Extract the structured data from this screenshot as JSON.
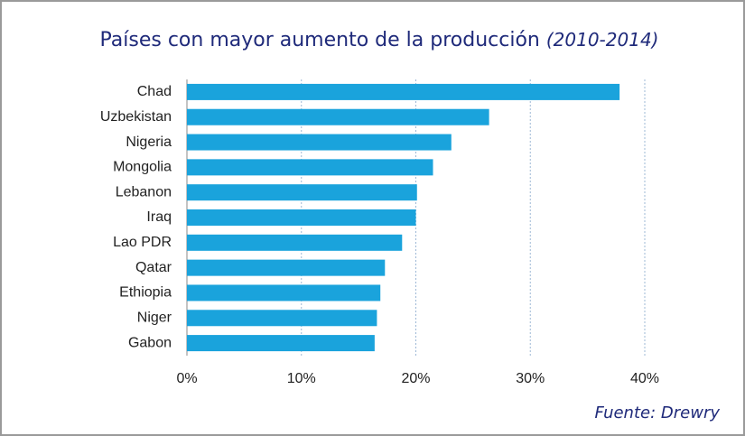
{
  "chart_data": {
    "type": "bar",
    "orientation": "horizontal",
    "title": "Países con mayor aumento de la producción",
    "subtitle": "(2010-2014)",
    "source": "Fuente: Drewry",
    "categories": [
      "Chad",
      "Uzbekistan",
      "Nigeria",
      "Mongolia",
      "Lebanon",
      "Iraq",
      "Lao PDR",
      "Qatar",
      "Ethiopia",
      "Niger",
      "Gabon"
    ],
    "values": [
      37.8,
      26.4,
      23.1,
      21.5,
      20.1,
      20.0,
      18.8,
      17.3,
      16.9,
      16.6,
      16.4
    ],
    "color": "#1aa3dc",
    "xlim": [
      0,
      40
    ],
    "xticks": [
      {
        "value": 0,
        "label": "0%"
      },
      {
        "value": 10,
        "label": "10%"
      },
      {
        "value": 20,
        "label": "20%"
      },
      {
        "value": 30,
        "label": "30%"
      },
      {
        "value": 40,
        "label": "40%"
      }
    ],
    "grid": true
  }
}
